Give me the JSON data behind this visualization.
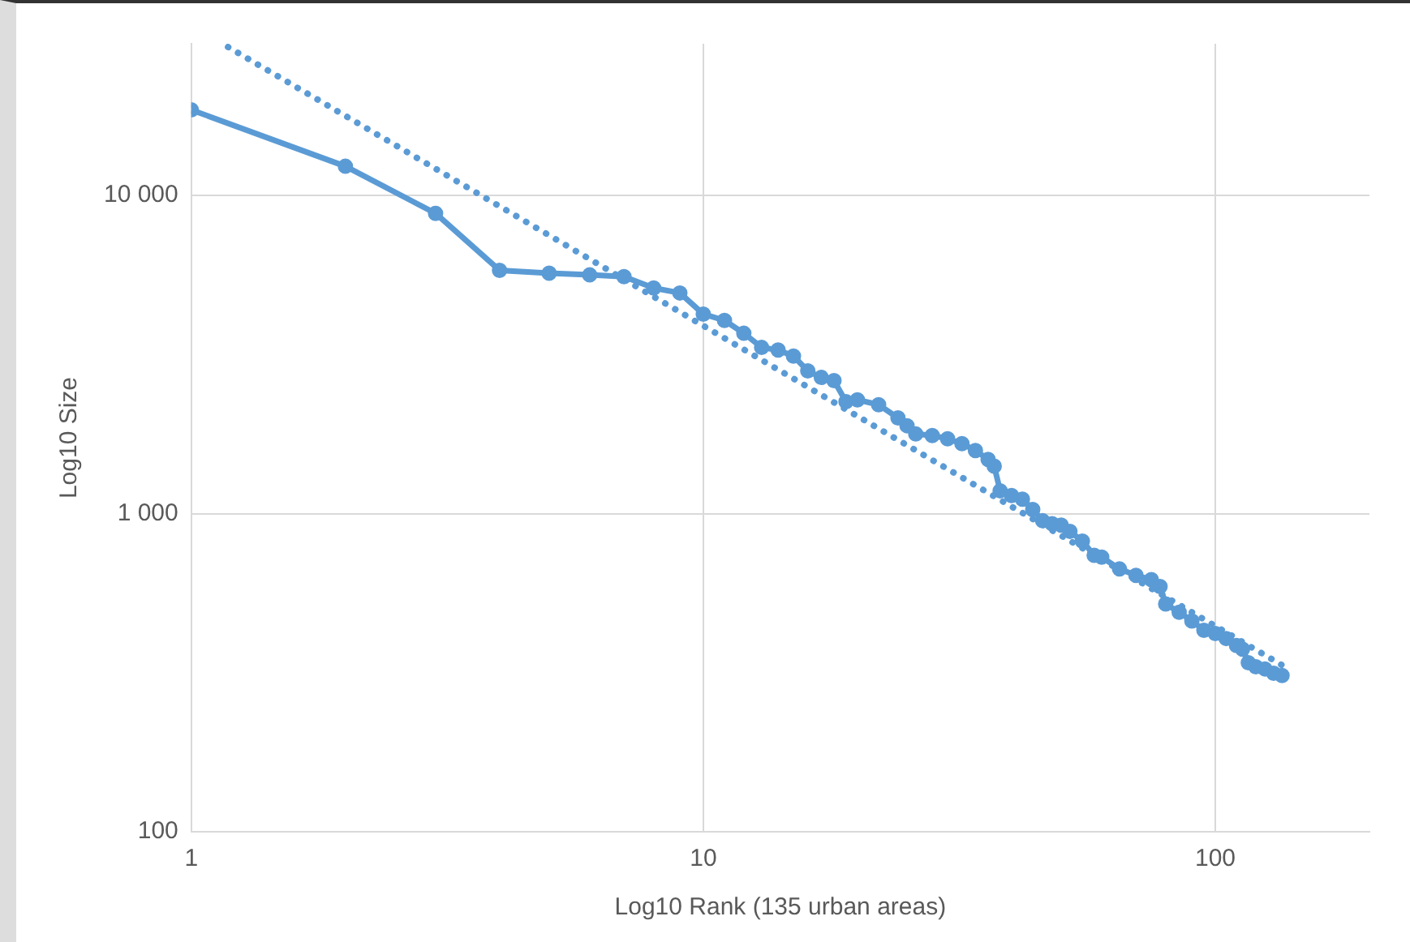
{
  "chart_data": {
    "type": "line",
    "xlabel": "Log10 Rank (135 urban areas)",
    "ylabel": "Log10 Size",
    "log": "xy",
    "grid": true,
    "legend": false,
    "xlim": [
      1,
      200
    ],
    "xticks": [
      1,
      10,
      100
    ],
    "ylim": [
      100,
      30000
    ],
    "yticks": [
      100,
      {
        "value": 1000,
        "label": "1 000"
      },
      {
        "value": 10000,
        "label": "10 000"
      }
    ],
    "series": [
      {
        "type": "line",
        "color": "#5b9bd5",
        "marker": "circle",
        "line_style": "solid",
        "x": [
          1,
          2,
          3,
          4,
          5,
          6,
          7,
          8,
          9,
          10,
          11,
          12,
          13,
          14,
          15,
          16,
          17,
          18,
          19,
          20,
          22,
          24,
          25,
          26,
          28,
          30,
          32,
          34,
          36,
          37,
          38,
          40,
          42,
          44,
          46,
          48,
          50,
          52,
          55,
          58,
          60,
          65,
          70,
          75,
          78,
          80,
          85,
          90,
          95,
          100,
          105,
          110,
          113,
          116,
          120,
          125,
          130,
          135
        ],
        "values": [
          18600,
          12360,
          8790,
          5820,
          5700,
          5630,
          5560,
          5120,
          4940,
          4240,
          4050,
          3690,
          3330,
          3270,
          3130,
          2810,
          2680,
          2620,
          2250,
          2280,
          2200,
          2000,
          1890,
          1780,
          1760,
          1720,
          1660,
          1580,
          1480,
          1410,
          1180,
          1140,
          1110,
          1030,
          950,
          930,
          920,
          880,
          820,
          740,
          730,
          670,
          640,
          620,
          590,
          520,
          490,
          460,
          430,
          420,
          405,
          385,
          375,
          340,
          330,
          325,
          315,
          310
        ]
      },
      {
        "type": "line",
        "color": "#5b9bd5",
        "marker": "none",
        "line_style": "dotted",
        "x": [
          1.18,
          135
        ],
        "values": [
          29300,
          334
        ]
      }
    ]
  }
}
